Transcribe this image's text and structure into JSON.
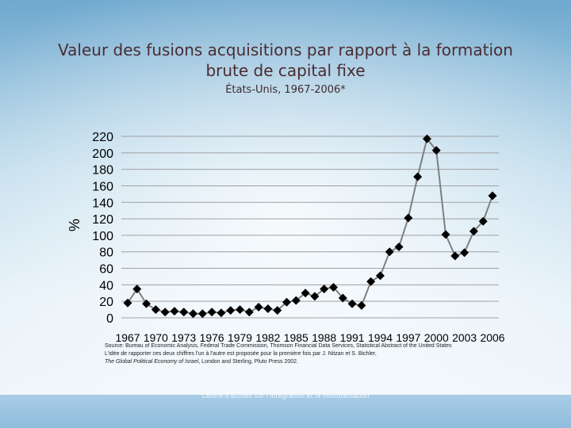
{
  "title": "Valeur des fusions acquisitions par rapport à la formation brute de capital fixe",
  "subtitle": "États-Unis, 1967-2006*",
  "chart_data": {
    "type": "line",
    "title": "Valeur des fusions acquisitions par rapport à la formation brute de capital fixe",
    "subtitle": "États-Unis, 1967-2006*",
    "ylabel": "%",
    "xlabel": "",
    "ylim": [
      0,
      220
    ],
    "yticks": [
      0,
      20,
      40,
      60,
      80,
      100,
      120,
      140,
      160,
      180,
      200,
      220
    ],
    "xtick_labels": [
      "1967",
      "1970",
      "1973",
      "1976",
      "1979",
      "1982",
      "1985",
      "1988",
      "1991",
      "1994",
      "1997",
      "2000",
      "2003",
      "2006"
    ],
    "grid": true,
    "marker": "diamond",
    "line_color": "#7f7f7f",
    "marker_color": "#000000",
    "x": [
      1967,
      1968,
      1969,
      1970,
      1971,
      1972,
      1973,
      1974,
      1975,
      1976,
      1977,
      1978,
      1979,
      1980,
      1981,
      1982,
      1983,
      1984,
      1985,
      1986,
      1987,
      1988,
      1989,
      1990,
      1991,
      1992,
      1993,
      1994,
      1995,
      1996,
      1997,
      1998,
      1999,
      2000,
      2001,
      2002,
      2003,
      2004,
      2005,
      2006
    ],
    "values": [
      18,
      35,
      17,
      10,
      7,
      8,
      7,
      5,
      5,
      7,
      6,
      9,
      10,
      7,
      13,
      11,
      9,
      19,
      21,
      30,
      26,
      35,
      37,
      24,
      17,
      15,
      44,
      51,
      80,
      86,
      121,
      171,
      217,
      203,
      101,
      75,
      79,
      105,
      117,
      148
    ]
  },
  "source": {
    "line1": "Source: Bureau of Economic Analysis, Federal Trade Commission, Thomson Financial Data Services, Statistical Abstract of the United States",
    "line2": "L'idée de rapporter ces deux chiffres l'un à l'autre est proposée pour la première fois par J. Nitzan et S. Bichler,",
    "line3_italic": "The Global Political Economy of Israel",
    "line3_rest": ", London and Sterling, Pluto Press 2002."
  },
  "footer": "Centre d'études sur l'intégration et la mondialisation"
}
